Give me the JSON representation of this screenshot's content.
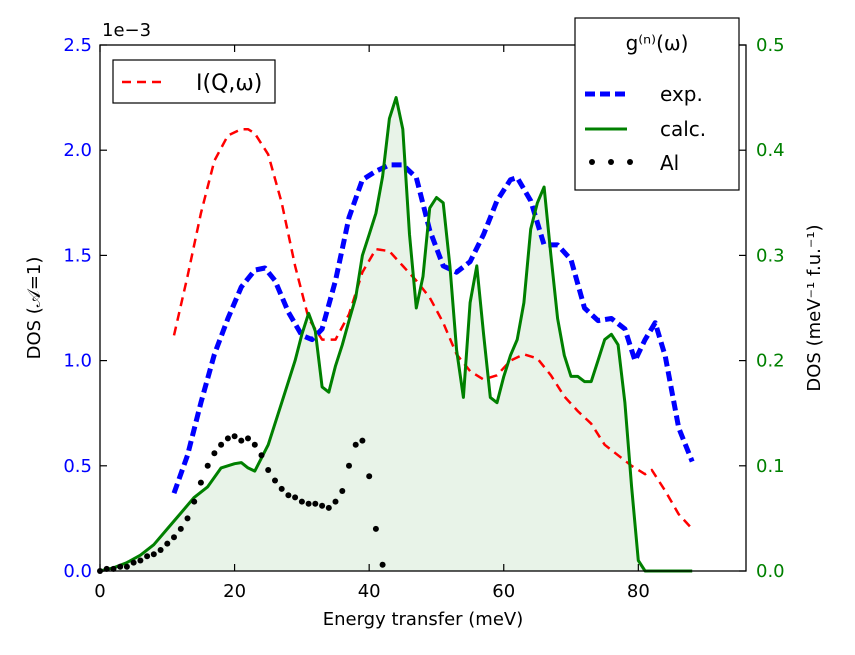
{
  "chart_data": {
    "type": "line",
    "title": "",
    "xlabel": "Energy transfer (meV)",
    "xlim": [
      0,
      96
    ],
    "xticks": [
      0,
      20,
      40,
      60,
      80
    ],
    "x_tick_labels": [
      "0",
      "20",
      "40",
      "60",
      "80"
    ],
    "left_axis": {
      "label": "DOS  (𝒜=1)",
      "multiplier_label": "1e−3",
      "ylim": [
        0,
        2.5
      ],
      "ticks": [
        0,
        0.5,
        1.0,
        1.5,
        2.0,
        2.5
      ],
      "tick_labels": [
        "0.0",
        "0.5",
        "1.0",
        "1.5",
        "2.0",
        "2.5"
      ],
      "color": "#0000ff"
    },
    "right_axis": {
      "label": "DOS (meV⁻¹ f.u.⁻¹)",
      "ylim": [
        0,
        0.5
      ],
      "ticks": [
        0,
        0.1,
        0.2,
        0.3,
        0.4,
        0.5
      ],
      "tick_labels": [
        "0.0",
        "0.1",
        "0.2",
        "0.3",
        "0.4",
        "0.5"
      ],
      "color": "#008000"
    },
    "legend_left": {
      "position": "top-left",
      "entries": [
        {
          "label": "I(Q,ω)",
          "series": "I_Q_omega"
        }
      ]
    },
    "legend_right": {
      "position": "top-right",
      "title": "g⁽ⁿ⁾(ω)",
      "entries": [
        {
          "label": "exp.",
          "series": "exp"
        },
        {
          "label": "calc.",
          "series": "calc"
        },
        {
          "label": "Al",
          "series": "Al"
        }
      ]
    },
    "series": [
      {
        "id": "I_Q_omega",
        "name": "I(Q,ω)",
        "axis": "left",
        "color": "#ff0000",
        "style": "dashed",
        "x": [
          11,
          13,
          15,
          17,
          19,
          21,
          22,
          23,
          25,
          27,
          29,
          31,
          33,
          35,
          37,
          39,
          41,
          43,
          45,
          47,
          49,
          51,
          53,
          55,
          57,
          59,
          61,
          63,
          65,
          67,
          69,
          71,
          73,
          75,
          77,
          79,
          81,
          82,
          84,
          86,
          88
        ],
        "y": [
          1.12,
          1.4,
          1.7,
          1.95,
          2.07,
          2.1,
          2.1,
          2.08,
          1.98,
          1.75,
          1.45,
          1.2,
          1.1,
          1.1,
          1.22,
          1.42,
          1.53,
          1.52,
          1.45,
          1.38,
          1.3,
          1.18,
          1.03,
          0.95,
          0.91,
          0.93,
          1.0,
          1.03,
          1.01,
          0.93,
          0.83,
          0.76,
          0.7,
          0.6,
          0.55,
          0.5,
          0.46,
          0.48,
          0.38,
          0.27,
          0.2
        ]
      },
      {
        "id": "exp",
        "name": "exp.",
        "axis": "left",
        "color": "#0000ff",
        "style": "thick-dashed",
        "x": [
          11,
          13,
          15,
          17,
          19,
          21,
          23,
          24.5,
          26,
          28,
          30,
          31.5,
          33,
          35,
          37,
          39,
          41,
          43,
          45,
          47,
          49,
          51,
          53,
          55,
          57,
          59,
          61,
          62,
          64,
          66,
          68,
          70,
          72,
          74,
          76,
          78,
          79.5,
          81,
          82.5,
          84,
          86,
          88
        ],
        "y": [
          0.37,
          0.55,
          0.8,
          1.03,
          1.2,
          1.35,
          1.43,
          1.44,
          1.38,
          1.23,
          1.12,
          1.1,
          1.15,
          1.38,
          1.68,
          1.86,
          1.9,
          1.93,
          1.93,
          1.87,
          1.62,
          1.45,
          1.42,
          1.47,
          1.6,
          1.76,
          1.86,
          1.87,
          1.76,
          1.55,
          1.55,
          1.48,
          1.25,
          1.19,
          1.2,
          1.15,
          1.0,
          1.1,
          1.18,
          1.02,
          0.68,
          0.52
        ]
      },
      {
        "id": "calc",
        "name": "calc.",
        "axis": "right",
        "color": "#008000",
        "style": "solid",
        "fill": true,
        "x": [
          0,
          2,
          4,
          6,
          8,
          10,
          12,
          14,
          16,
          18,
          20,
          21,
          22,
          23,
          25,
          27,
          29,
          30,
          31,
          32,
          33,
          34,
          35,
          36,
          37,
          38,
          39,
          40,
          41,
          42,
          43,
          44,
          45,
          46,
          47,
          48,
          49,
          50,
          51,
          52,
          53,
          54,
          55,
          56,
          57,
          58,
          59,
          60,
          61,
          62,
          63,
          64,
          65,
          66,
          67,
          68,
          69,
          70,
          71,
          72,
          73,
          74,
          75,
          76,
          77,
          78,
          79,
          80,
          81,
          82,
          84,
          86,
          88
        ],
        "y": [
          0.0,
          0.003,
          0.008,
          0.015,
          0.025,
          0.04,
          0.055,
          0.07,
          0.08,
          0.098,
          0.102,
          0.103,
          0.098,
          0.095,
          0.12,
          0.16,
          0.2,
          0.225,
          0.245,
          0.228,
          0.175,
          0.17,
          0.195,
          0.215,
          0.238,
          0.26,
          0.3,
          0.32,
          0.34,
          0.375,
          0.43,
          0.45,
          0.42,
          0.32,
          0.25,
          0.28,
          0.345,
          0.355,
          0.35,
          0.29,
          0.21,
          0.165,
          0.255,
          0.29,
          0.225,
          0.165,
          0.16,
          0.185,
          0.205,
          0.22,
          0.255,
          0.325,
          0.35,
          0.365,
          0.3,
          0.24,
          0.205,
          0.185,
          0.185,
          0.18,
          0.18,
          0.2,
          0.22,
          0.225,
          0.215,
          0.16,
          0.08,
          0.01,
          0.0,
          0.0,
          0.0,
          0.0,
          0.0
        ]
      },
      {
        "id": "Al",
        "name": "Al",
        "axis": "left",
        "color": "#000000",
        "style": "dotted",
        "x": [
          0,
          1,
          2,
          3,
          4,
          5,
          6,
          7,
          8,
          9,
          10,
          11,
          12,
          13,
          14,
          15,
          16,
          17,
          18,
          19,
          20,
          21,
          22,
          23,
          24,
          25,
          26,
          27,
          28,
          29,
          30,
          31,
          32,
          33,
          34,
          35,
          36,
          37,
          38,
          39,
          40,
          41,
          42
        ],
        "y": [
          0.0,
          0.01,
          0.01,
          0.02,
          0.02,
          0.04,
          0.05,
          0.07,
          0.08,
          0.1,
          0.13,
          0.16,
          0.2,
          0.25,
          0.33,
          0.42,
          0.5,
          0.56,
          0.6,
          0.63,
          0.64,
          0.62,
          0.63,
          0.6,
          0.55,
          0.48,
          0.43,
          0.39,
          0.36,
          0.35,
          0.33,
          0.32,
          0.32,
          0.31,
          0.3,
          0.33,
          0.38,
          0.5,
          0.6,
          0.62,
          0.45,
          0.2,
          0.03
        ]
      }
    ]
  }
}
